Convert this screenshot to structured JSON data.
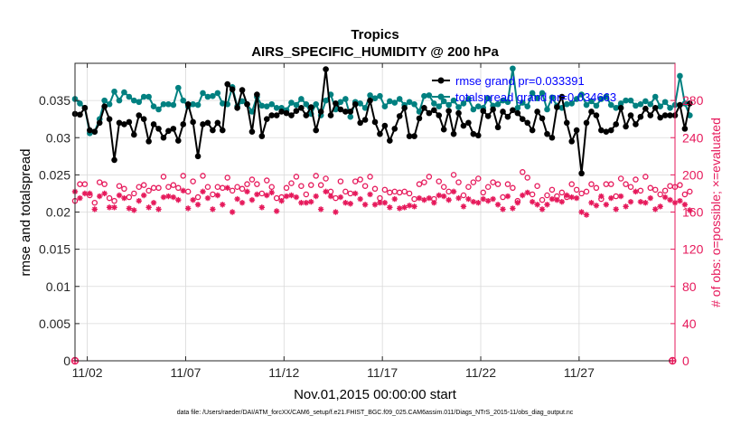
{
  "chart_data": {
    "type": "line",
    "title": "Tropics",
    "subtitle": "AIRS_SPECIFIC_HUMIDITY @ 200 hPa",
    "xlabel": "Nov.01,2015 00:00:00 start",
    "ylabel_left": "rmse and totalspread",
    "ylabel_right": "# of obs: o=possible; ×=evaluated",
    "footer": "data file: /Users/raeder/DAI/ATM_forcXX/CAM6_setup/f.e21.FHIST_BGC.f09_025.CAM6assim.011/Diags_NTrS_2015-11/obs_diag_output.nc",
    "xlim": [
      0.375,
      30.875
    ],
    "ylim_left": [
      0,
      0.04
    ],
    "ylim_right": [
      0,
      320
    ],
    "x_ticks": [
      {
        "v": 1,
        "label": "11/02"
      },
      {
        "v": 6,
        "label": "11/07"
      },
      {
        "v": 11,
        "label": "11/12"
      },
      {
        "v": 16,
        "label": "11/17"
      },
      {
        "v": 21,
        "label": "11/22"
      },
      {
        "v": 26,
        "label": "11/27"
      }
    ],
    "y_left_ticks": [
      {
        "v": 0,
        "label": "0"
      },
      {
        "v": 0.005,
        "label": "0.005"
      },
      {
        "v": 0.01,
        "label": "0.01"
      },
      {
        "v": 0.015,
        "label": "0.015"
      },
      {
        "v": 0.02,
        "label": "0.02"
      },
      {
        "v": 0.025,
        "label": "0.025"
      },
      {
        "v": 0.03,
        "label": "0.03"
      },
      {
        "v": 0.035,
        "label": "0.035"
      }
    ],
    "y_right_ticks": [
      {
        "v": 0,
        "label": "0"
      },
      {
        "v": 40,
        "label": "40"
      },
      {
        "v": 80,
        "label": "80"
      },
      {
        "v": 120,
        "label": "120"
      },
      {
        "v": 160,
        "label": "160"
      },
      {
        "v": 200,
        "label": "200"
      },
      {
        "v": 240,
        "label": "240"
      },
      {
        "v": 280,
        "label": "280"
      }
    ],
    "legend": [
      {
        "label": "rmse grand pr=0.033391",
        "color": "#000000"
      },
      {
        "label": "totalspread grand pr=0.034663",
        "color": "#008080"
      }
    ],
    "x_start": 0.375,
    "x_step": 0.25,
    "series": [
      {
        "name": "rmse",
        "color": "#000000",
        "values": [
          0.0332,
          0.0331,
          0.034,
          0.031,
          0.0308,
          0.032,
          0.0342,
          0.0325,
          0.027,
          0.032,
          0.0318,
          0.0321,
          0.0304,
          0.033,
          0.0325,
          0.0295,
          0.0318,
          0.0312,
          0.03,
          0.0309,
          0.0312,
          0.0296,
          0.0318,
          0.0345,
          0.0321,
          0.0275,
          0.0318,
          0.032,
          0.031,
          0.032,
          0.031,
          0.0372,
          0.0365,
          0.034,
          0.0364,
          0.0345,
          0.0308,
          0.0358,
          0.0302,
          0.0325,
          0.033,
          0.033,
          0.0335,
          0.0333,
          0.033,
          0.0336,
          0.034,
          0.033,
          0.0341,
          0.031,
          0.0335,
          0.0392,
          0.033,
          0.0346,
          0.0338,
          0.0335,
          0.0335,
          0.0345,
          0.032,
          0.0324,
          0.035,
          0.0321,
          0.0305,
          0.0316,
          0.0296,
          0.0312,
          0.0329,
          0.034,
          0.0302,
          0.0302,
          0.0326,
          0.034,
          0.0333,
          0.0337,
          0.033,
          0.0311,
          0.0336,
          0.0305,
          0.0333,
          0.0316,
          0.032,
          0.0305,
          0.0303,
          0.0336,
          0.0329,
          0.0338,
          0.0314,
          0.0335,
          0.0328,
          0.0337,
          0.0333,
          0.0325,
          0.032,
          0.031,
          0.0335,
          0.0326,
          0.0305,
          0.03,
          0.0341,
          0.0355,
          0.032,
          0.0295,
          0.031,
          0.0252,
          0.032,
          0.0335,
          0.033,
          0.031,
          0.0308,
          0.031,
          0.0318,
          0.034,
          0.0315,
          0.033,
          0.0318,
          0.0328,
          0.0339,
          0.033,
          0.034,
          0.0327,
          0.033,
          0.033,
          0.033,
          0.0344,
          0.0312,
          0.0346
        ]
      },
      {
        "name": "totalspread",
        "color": "#008080",
        "values": [
          0.0352,
          0.0346,
          0.034,
          0.0306,
          0.0308,
          0.0325,
          0.035,
          0.0345,
          0.0362,
          0.035,
          0.0361,
          0.0355,
          0.035,
          0.0348,
          0.0355,
          0.0355,
          0.0342,
          0.0338,
          0.0345,
          0.0345,
          0.0344,
          0.0367,
          0.035,
          0.0342,
          0.0345,
          0.0344,
          0.036,
          0.0355,
          0.0356,
          0.036,
          0.0346,
          0.0345,
          0.0368,
          0.0342,
          0.0349,
          0.0345,
          0.0335,
          0.0355,
          0.0343,
          0.0342,
          0.0345,
          0.034,
          0.034,
          0.0337,
          0.0347,
          0.0344,
          0.0352,
          0.0345,
          0.0332,
          0.0345,
          0.033,
          0.035,
          0.0358,
          0.0338,
          0.0348,
          0.0352,
          0.0328,
          0.0348,
          0.0346,
          0.034,
          0.0357,
          0.0353,
          0.0356,
          0.0342,
          0.0349,
          0.0347,
          0.0352,
          0.0344,
          0.0348,
          0.0345,
          0.0335,
          0.0356,
          0.0357,
          0.0346,
          0.0342,
          0.0349,
          0.0344,
          0.035,
          0.0341,
          0.0346,
          0.0352,
          0.0338,
          0.0342,
          0.034,
          0.0353,
          0.0343,
          0.0345,
          0.035,
          0.0348,
          0.0393,
          0.034,
          0.0347,
          0.0342,
          0.036,
          0.0353,
          0.036,
          0.0338,
          0.0354,
          0.0343,
          0.034,
          0.0345,
          0.0346,
          0.0352,
          0.0358,
          0.0344,
          0.0349,
          0.0343,
          0.0352,
          0.0355,
          0.0344,
          0.034,
          0.0346,
          0.035,
          0.035,
          0.0343,
          0.0345,
          0.0349,
          0.0345,
          0.0355,
          0.0342,
          0.0348,
          0.034,
          0.0344,
          0.0383,
          0.0346,
          0.033
        ]
      },
      {
        "name": "obs_possible",
        "marker": "o",
        "color": "#e6195b",
        "values": [
          172,
          190,
          190,
          178,
          170,
          192,
          190,
          175,
          172,
          188,
          185,
          176,
          180,
          187,
          189,
          183,
          186,
          186,
          198,
          187,
          189,
          186,
          199,
          182,
          193,
          176,
          199,
          187,
          179,
          187,
          186,
          197,
          183,
          187,
          185,
          190,
          195,
          190,
          180,
          194,
          187,
          175,
          176,
          186,
          191,
          198,
          188,
          179,
          189,
          199,
          189,
          196,
          182,
          175,
          193,
          182,
          180,
          193,
          195,
          188,
          198,
          185,
          175,
          184,
          181,
          182,
          181,
          182,
          180,
          174,
          190,
          192,
          198,
          174,
          193,
          187,
          182,
          200,
          192,
          178,
          187,
          192,
          196,
          181,
          187,
          192,
          190,
          176,
          190,
          186,
          172,
          203,
          197,
          179,
          188,
          173,
          178,
          184,
          177,
          181,
          176,
          190,
          184,
          180,
          182,
          190,
          186,
          174,
          190,
          190,
          177,
          196,
          190,
          187,
          195,
          183,
          198,
          186,
          184,
          179,
          183,
          188,
          187,
          189,
          179,
          182
        ]
      },
      {
        "name": "obs_evaluated",
        "marker": "x",
        "color": "#e6195b",
        "values": [
          182,
          175,
          180,
          180,
          163,
          177,
          180,
          165,
          165,
          178,
          175,
          164,
          162,
          172,
          178,
          165,
          170,
          163,
          176,
          177,
          176,
          173,
          183,
          164,
          173,
          168,
          182,
          175,
          163,
          178,
          168,
          186,
          160,
          174,
          170,
          182,
          173,
          179,
          165,
          178,
          181,
          161,
          172,
          177,
          178,
          176,
          170,
          170,
          171,
          177,
          163,
          182,
          177,
          160,
          176,
          170,
          169,
          180,
          174,
          168,
          179,
          168,
          170,
          170,
          165,
          174,
          164,
          165,
          167,
          166,
          175,
          173,
          175,
          170,
          178,
          177,
          173,
          182,
          175,
          166,
          174,
          171,
          170,
          174,
          172,
          174,
          168,
          163,
          177,
          164,
          170,
          178,
          181,
          171,
          168,
          163,
          168,
          174,
          173,
          171,
          178,
          176,
          175,
          160,
          157,
          170,
          167,
          177,
          168,
          175,
          163,
          177,
          166,
          171,
          182,
          171,
          170,
          175,
          163,
          166,
          176,
          173,
          170,
          172,
          168,
          162
        ]
      }
    ]
  }
}
